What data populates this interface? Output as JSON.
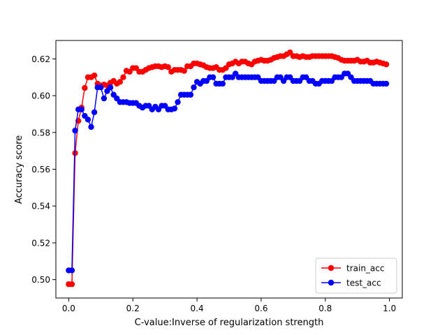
{
  "chart_data": {
    "type": "line",
    "title": "",
    "xlabel": "C-value:Inverse of regularization strength",
    "ylabel": "Accuracy score",
    "xlim": [
      -0.04,
      1.04
    ],
    "ylim": [
      0.49,
      0.63
    ],
    "x_ticks": [
      0.0,
      0.2,
      0.4,
      0.6,
      0.8,
      1.0
    ],
    "x_tick_labels": [
      "0.0",
      "0.2",
      "0.4",
      "0.6",
      "0.8",
      "1.0"
    ],
    "y_ticks": [
      0.5,
      0.52,
      0.54,
      0.56,
      0.58,
      0.6,
      0.62
    ],
    "y_tick_labels": [
      "0.50",
      "0.52",
      "0.54",
      "0.56",
      "0.58",
      "0.60",
      "0.62"
    ],
    "grid": false,
    "legend_position": "lower right",
    "x": [
      0.0,
      0.01,
      0.02,
      0.03,
      0.04,
      0.05,
      0.06,
      0.07,
      0.08,
      0.09,
      0.1,
      0.11,
      0.12,
      0.13,
      0.14,
      0.15,
      0.16,
      0.17,
      0.18,
      0.19,
      0.2,
      0.21,
      0.22,
      0.23,
      0.24,
      0.25,
      0.26,
      0.27,
      0.28,
      0.29,
      0.3,
      0.31,
      0.32,
      0.33,
      0.34,
      0.35,
      0.36,
      0.37,
      0.38,
      0.39,
      0.4,
      0.41,
      0.42,
      0.43,
      0.44,
      0.45,
      0.46,
      0.47,
      0.48,
      0.49,
      0.5,
      0.51,
      0.52,
      0.53,
      0.54,
      0.55,
      0.56,
      0.57,
      0.58,
      0.59,
      0.6,
      0.61,
      0.62,
      0.63,
      0.64,
      0.65,
      0.66,
      0.67,
      0.68,
      0.69,
      0.7,
      0.71,
      0.72,
      0.73,
      0.74,
      0.75,
      0.76,
      0.77,
      0.78,
      0.79,
      0.8,
      0.81,
      0.82,
      0.83,
      0.84,
      0.85,
      0.86,
      0.87,
      0.88,
      0.89,
      0.9,
      0.91,
      0.92,
      0.93,
      0.94,
      0.95,
      0.96,
      0.97,
      0.98,
      0.99
    ],
    "series": [
      {
        "name": "train_acc",
        "color": "#ff0000",
        "values": [
          0.4975,
          0.4975,
          0.5688,
          0.5863,
          0.5935,
          0.6042,
          0.61,
          0.61,
          0.611,
          0.6065,
          0.6055,
          0.606,
          0.6055,
          0.607,
          0.608,
          0.6065,
          0.6075,
          0.61,
          0.6135,
          0.613,
          0.615,
          0.615,
          0.613,
          0.613,
          0.614,
          0.615,
          0.6155,
          0.616,
          0.616,
          0.6155,
          0.616,
          0.6155,
          0.613,
          0.614,
          0.614,
          0.614,
          0.6135,
          0.616,
          0.616,
          0.6175,
          0.6175,
          0.617,
          0.6165,
          0.6155,
          0.615,
          0.615,
          0.6155,
          0.614,
          0.614,
          0.615,
          0.617,
          0.6175,
          0.6185,
          0.6175,
          0.6185,
          0.6185,
          0.6175,
          0.617,
          0.6185,
          0.619,
          0.6195,
          0.619,
          0.619,
          0.6195,
          0.6205,
          0.621,
          0.6215,
          0.6215,
          0.6225,
          0.6235,
          0.6215,
          0.6215,
          0.621,
          0.6215,
          0.621,
          0.621,
          0.6215,
          0.6215,
          0.6215,
          0.6215,
          0.6215,
          0.6215,
          0.6215,
          0.621,
          0.6205,
          0.6195,
          0.619,
          0.619,
          0.619,
          0.619,
          0.6195,
          0.6185,
          0.6185,
          0.619,
          0.618,
          0.618,
          0.6185,
          0.618,
          0.6175,
          0.617
        ]
      },
      {
        "name": "test_acc",
        "color": "#0000ff",
        "values": [
          0.505,
          0.505,
          0.581,
          0.5925,
          0.5925,
          0.589,
          0.587,
          0.583,
          0.591,
          0.6045,
          0.6045,
          0.5985,
          0.6025,
          0.6045,
          0.6005,
          0.5985,
          0.5965,
          0.5965,
          0.5965,
          0.596,
          0.596,
          0.596,
          0.5945,
          0.5935,
          0.5945,
          0.5945,
          0.5925,
          0.594,
          0.5925,
          0.5945,
          0.5945,
          0.5925,
          0.5925,
          0.593,
          0.5965,
          0.6005,
          0.6005,
          0.6005,
          0.6005,
          0.6045,
          0.6075,
          0.6065,
          0.608,
          0.608,
          0.61,
          0.61,
          0.6065,
          0.6065,
          0.6065,
          0.61,
          0.61,
          0.61,
          0.612,
          0.61,
          0.61,
          0.61,
          0.61,
          0.61,
          0.61,
          0.61,
          0.608,
          0.608,
          0.608,
          0.608,
          0.608,
          0.61,
          0.61,
          0.608,
          0.61,
          0.61,
          0.608,
          0.608,
          0.608,
          0.61,
          0.61,
          0.608,
          0.608,
          0.6065,
          0.6065,
          0.608,
          0.608,
          0.608,
          0.608,
          0.61,
          0.61,
          0.61,
          0.612,
          0.612,
          0.61,
          0.608,
          0.608,
          0.608,
          0.608,
          0.608,
          0.608,
          0.6065,
          0.6065,
          0.6065,
          0.6065,
          0.6065
        ]
      }
    ]
  }
}
